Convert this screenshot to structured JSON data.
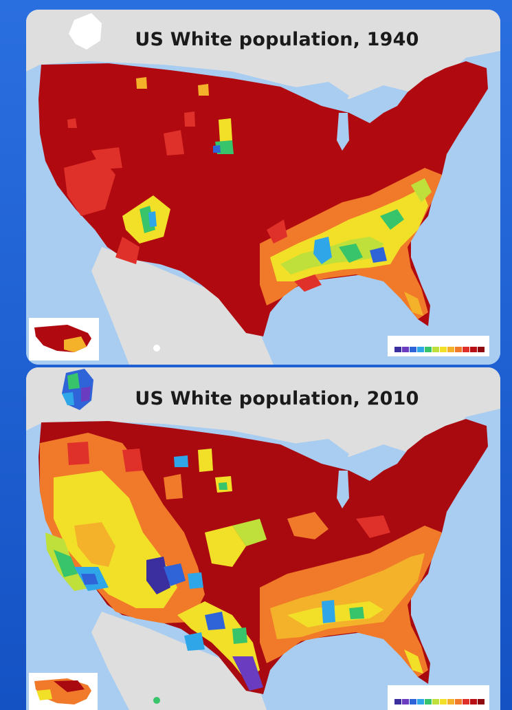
{
  "panels": [
    {
      "title": "US White population, 1940",
      "year": 1940,
      "legend_colors": [
        "#3b2fa0",
        "#6a3cc0",
        "#2f64d8",
        "#2fa6e8",
        "#37c46a",
        "#bfe03a",
        "#f2e028",
        "#f4b22a",
        "#f07a2a",
        "#e0302a",
        "#b80f14",
        "#8f0a0f"
      ]
    },
    {
      "title": "US White population, 2010",
      "year": 2010,
      "legend_colors": [
        "#3b2fa0",
        "#6a3cc0",
        "#2f64d8",
        "#2fa6e8",
        "#37c46a",
        "#bfe03a",
        "#f2e028",
        "#f4b22a",
        "#f07a2a",
        "#e0302a",
        "#b80f14",
        "#8f0a0f"
      ]
    }
  ],
  "colors": {
    "ocean": "#a8cdf0",
    "land_outside": "#dcdcdc",
    "dominant_1940": "#b0090f",
    "dominant_2010": "#a80a10"
  }
}
